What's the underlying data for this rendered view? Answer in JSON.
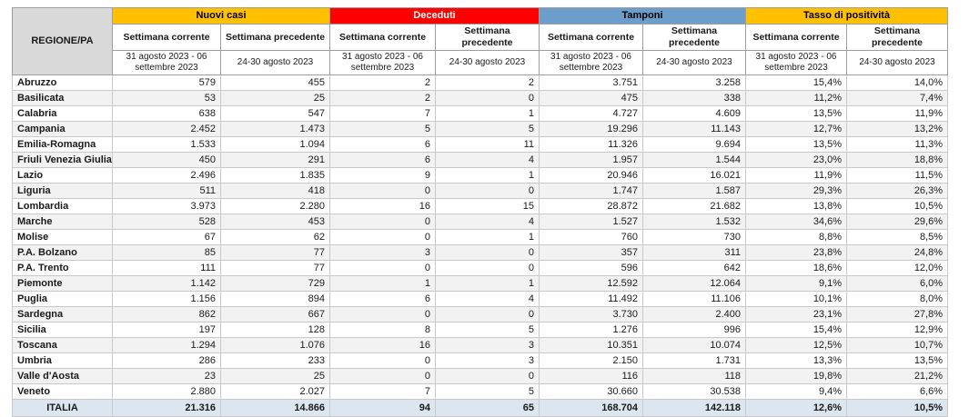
{
  "colors": {
    "group_nuovi_casi": "#FFC000",
    "group_nuovi_casi_text": "#000000",
    "group_deceduti": "#FF0000",
    "group_deceduti_text": "#FFFFFF",
    "group_tamponi": "#6D9ECB",
    "group_tamponi_text": "#000000",
    "group_tasso": "#FFC000",
    "group_tasso_text": "#000000",
    "region_header_bg": "#D9D9D9",
    "row_stripe": "#F2F2F2",
    "total_row_bg": "#DCE6F1"
  },
  "table": {
    "region_header": "REGIONE/PA",
    "groups": [
      {
        "label": "Nuovi casi"
      },
      {
        "label": "Deceduti"
      },
      {
        "label": "Tamponi"
      },
      {
        "label": "Tasso di positività"
      }
    ],
    "subheaders": {
      "current": "Settimana corrente",
      "previous": "Settimana precedente"
    },
    "periods": {
      "current": "31 agosto 2023 - 06 settembre 2023",
      "previous": "24-30 agosto 2023"
    },
    "rows": [
      {
        "region": "Abruzzo",
        "values": [
          "579",
          "455",
          "2",
          "2",
          "3.751",
          "3.258",
          "15,4%",
          "14,0%"
        ]
      },
      {
        "region": "Basilicata",
        "values": [
          "53",
          "25",
          "2",
          "0",
          "475",
          "338",
          "11,2%",
          "7,4%"
        ]
      },
      {
        "region": "Calabria",
        "values": [
          "638",
          "547",
          "7",
          "1",
          "4.727",
          "4.609",
          "13,5%",
          "11,9%"
        ]
      },
      {
        "region": "Campania",
        "values": [
          "2.452",
          "1.473",
          "5",
          "5",
          "19.296",
          "11.143",
          "12,7%",
          "13,2%"
        ]
      },
      {
        "region": "Emilia-Romagna",
        "values": [
          "1.533",
          "1.094",
          "6",
          "11",
          "11.326",
          "9.694",
          "13,5%",
          "11,3%"
        ]
      },
      {
        "region": "Friuli Venezia Giulia",
        "values": [
          "450",
          "291",
          "6",
          "4",
          "1.957",
          "1.544",
          "23,0%",
          "18,8%"
        ]
      },
      {
        "region": "Lazio",
        "values": [
          "2.496",
          "1.835",
          "9",
          "1",
          "20.946",
          "16.021",
          "11,9%",
          "11,5%"
        ]
      },
      {
        "region": "Liguria",
        "values": [
          "511",
          "418",
          "0",
          "0",
          "1.747",
          "1.587",
          "29,3%",
          "26,3%"
        ]
      },
      {
        "region": "Lombardia",
        "values": [
          "3.973",
          "2.280",
          "16",
          "15",
          "28.872",
          "21.682",
          "13,8%",
          "10,5%"
        ]
      },
      {
        "region": "Marche",
        "values": [
          "528",
          "453",
          "0",
          "4",
          "1.527",
          "1.532",
          "34,6%",
          "29,6%"
        ]
      },
      {
        "region": "Molise",
        "values": [
          "67",
          "62",
          "0",
          "1",
          "760",
          "730",
          "8,8%",
          "8,5%"
        ]
      },
      {
        "region": "P.A. Bolzano",
        "values": [
          "85",
          "77",
          "3",
          "0",
          "357",
          "311",
          "23,8%",
          "24,8%"
        ]
      },
      {
        "region": "P.A. Trento",
        "values": [
          "111",
          "77",
          "0",
          "0",
          "596",
          "642",
          "18,6%",
          "12,0%"
        ]
      },
      {
        "region": "Piemonte",
        "values": [
          "1.142",
          "729",
          "1",
          "1",
          "12.592",
          "12.064",
          "9,1%",
          "6,0%"
        ]
      },
      {
        "region": "Puglia",
        "values": [
          "1.156",
          "894",
          "6",
          "4",
          "11.492",
          "11.106",
          "10,1%",
          "8,0%"
        ]
      },
      {
        "region": "Sardegna",
        "values": [
          "862",
          "667",
          "0",
          "0",
          "3.730",
          "2.400",
          "23,1%",
          "27,8%"
        ]
      },
      {
        "region": "Sicilia",
        "values": [
          "197",
          "128",
          "8",
          "5",
          "1.276",
          "996",
          "15,4%",
          "12,9%"
        ]
      },
      {
        "region": "Toscana",
        "values": [
          "1.294",
          "1.076",
          "16",
          "3",
          "10.351",
          "10.074",
          "12,5%",
          "10,7%"
        ]
      },
      {
        "region": "Umbria",
        "values": [
          "286",
          "233",
          "0",
          "3",
          "2.150",
          "1.731",
          "13,3%",
          "13,5%"
        ]
      },
      {
        "region": "Valle d'Aosta",
        "values": [
          "23",
          "25",
          "0",
          "0",
          "116",
          "118",
          "19,8%",
          "21,2%"
        ]
      },
      {
        "region": "Veneto",
        "values": [
          "2.880",
          "2.027",
          "7",
          "5",
          "30.660",
          "30.538",
          "9,4%",
          "6,6%"
        ]
      }
    ],
    "total": {
      "region": "ITALIA",
      "values": [
        "21.316",
        "14.866",
        "94",
        "65",
        "168.704",
        "142.118",
        "12,6%",
        "10,5%"
      ]
    }
  }
}
